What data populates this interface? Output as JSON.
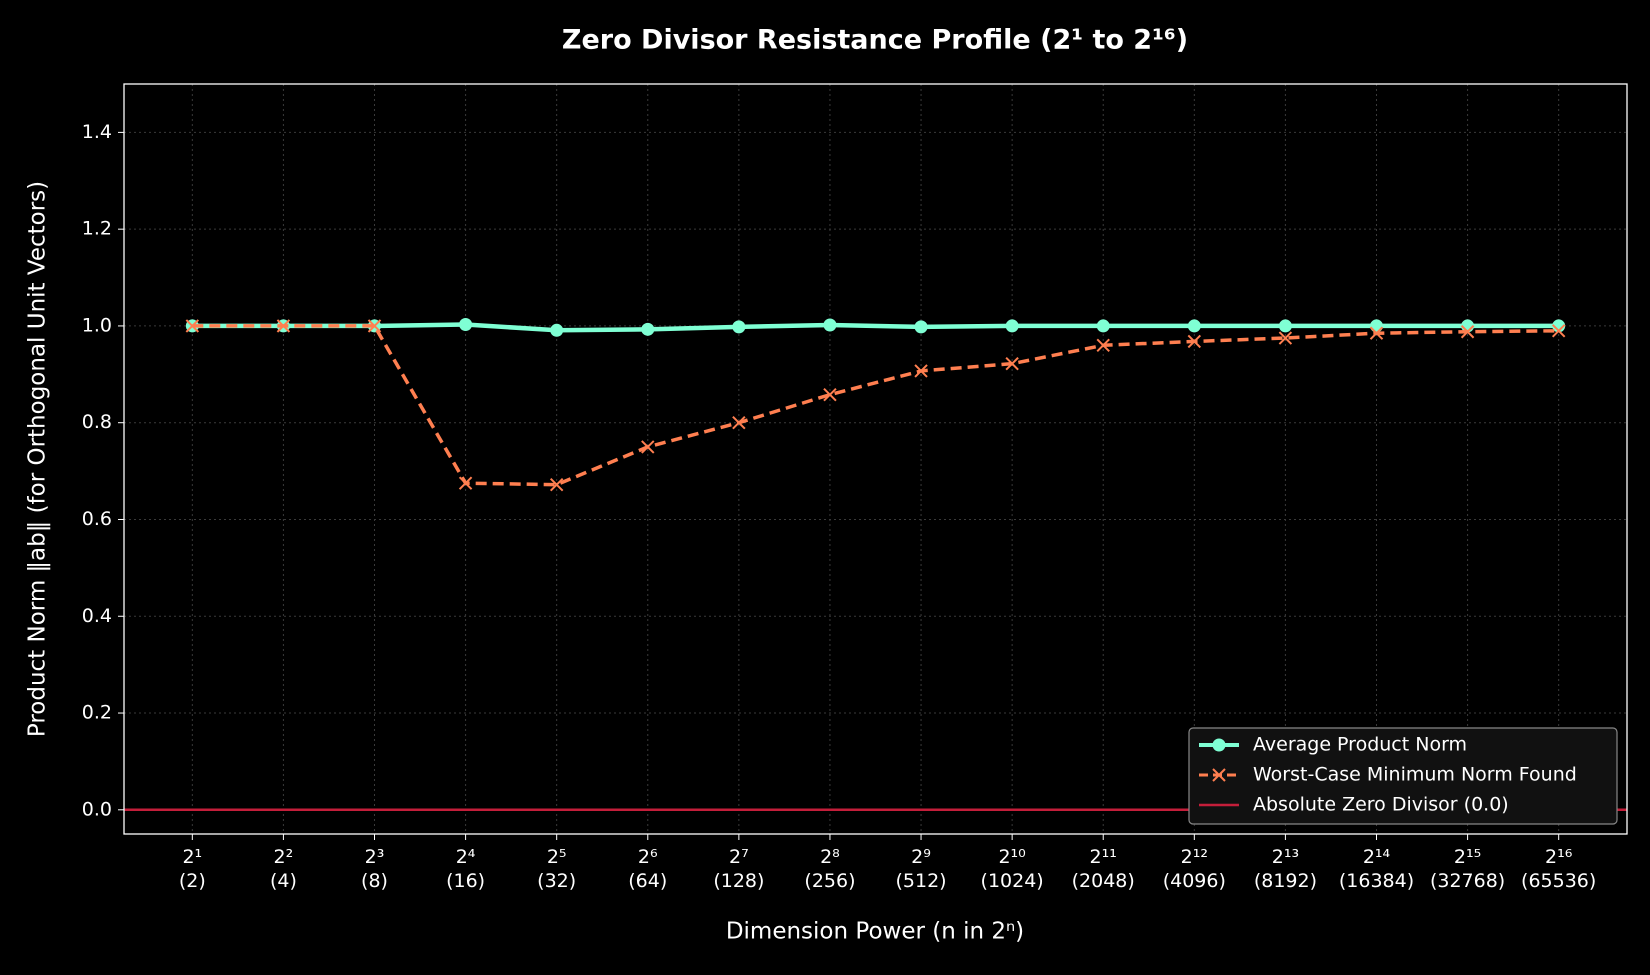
{
  "chart_data": {
    "type": "line",
    "title": "Zero Divisor Resistance Profile (2¹ to 2¹⁶)",
    "x_label": "Dimension Power (n in 2ⁿ)",
    "y_label": "Product Norm ‖ab‖ (for Orthogonal Unit Vectors)",
    "categories": [
      "2¹\n(2)",
      "2²\n(4)",
      "2³\n(8)",
      "2⁴\n(16)",
      "2⁵\n(32)",
      "2⁶\n(64)",
      "2⁷\n(128)",
      "2⁸\n(256)",
      "2⁹\n(512)",
      "2¹⁰\n(1024)",
      "2¹¹\n(2048)",
      "2¹²\n(4096)",
      "2¹³\n(8192)",
      "2¹⁴\n(16384)",
      "2¹⁵\n(32768)",
      "2¹⁶\n(65536)"
    ],
    "series": [
      {
        "name": "Average Product Norm",
        "color": "#7fffd4",
        "marker": "circle",
        "dash": "solid",
        "values": [
          1.0,
          1.0,
          1.0,
          1.003,
          0.991,
          0.993,
          0.998,
          1.002,
          0.998,
          1.0,
          1.0,
          1.0,
          1.0,
          1.0,
          1.0,
          1.0
        ]
      },
      {
        "name": "Worst-Case Minimum Norm Found",
        "color": "#ff7f50",
        "marker": "x",
        "dash": "dashed",
        "values": [
          1.0,
          1.0,
          1.0,
          0.675,
          0.672,
          0.75,
          0.8,
          0.858,
          0.907,
          0.922,
          0.96,
          0.968,
          0.975,
          0.985,
          0.988,
          0.99
        ]
      }
    ],
    "reference_line": {
      "name": "Absolute Zero Divisor (0.0)",
      "value": 0,
      "color": "#c41e3a"
    },
    "ylim": [
      -0.05,
      1.5
    ],
    "yticks": [
      {
        "value": 0,
        "label": "0.0"
      },
      0.2,
      0.4,
      0.6,
      0.8,
      {
        "value": 1,
        "label": "1.0"
      },
      1.2,
      1.4
    ],
    "grid": true,
    "legend": "lower right"
  }
}
